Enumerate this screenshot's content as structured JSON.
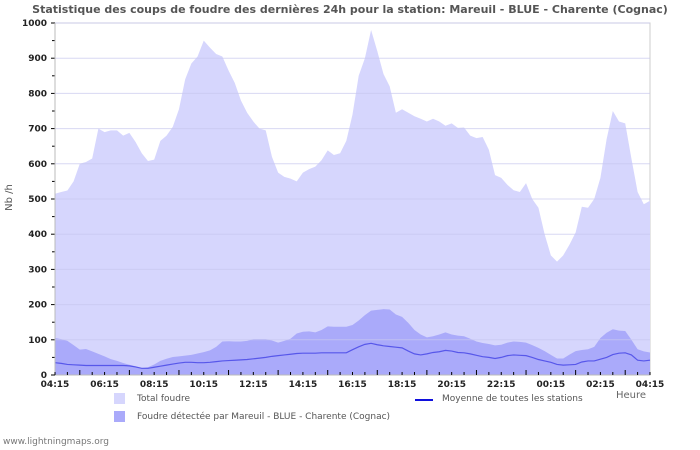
{
  "chart_data": {
    "type": "area",
    "title": "Statistique des coups de foudre des dernières 24h pour la station: Mareuil - BLUE - Charente (Cognac)",
    "xlabel": "Heure",
    "ylabel": "Nb /h",
    "ylim": [
      0,
      1000
    ],
    "yticks": [
      "0",
      "100",
      "200",
      "300",
      "400",
      "500",
      "600",
      "700",
      "800",
      "900",
      "1000"
    ],
    "xtick_labels": [
      "04:15",
      "06:15",
      "08:15",
      "10:15",
      "12:15",
      "14:15",
      "16:15",
      "18:15",
      "20:15",
      "22:15",
      "00:15",
      "02:15",
      "04:15"
    ],
    "x_step_minutes": 15,
    "grid": true,
    "series": [
      {
        "name": "Total foudre",
        "kind": "area",
        "color": "#d6d6fd",
        "values": [
          515,
          520,
          524,
          550,
          600,
          605,
          615,
          700,
          690,
          695,
          695,
          680,
          688,
          662,
          630,
          608,
          612,
          665,
          680,
          705,
          755,
          840,
          885,
          905,
          950,
          930,
          912,
          905,
          865,
          830,
          780,
          745,
          720,
          700,
          695,
          620,
          575,
          563,
          558,
          550,
          575,
          585,
          592,
          610,
          638,
          625,
          630,
          665,
          740,
          850,
          900,
          980,
          920,
          855,
          820,
          745,
          755,
          745,
          735,
          728,
          720,
          728,
          720,
          708,
          715,
          702,
          703,
          680,
          673,
          676,
          640,
          568,
          560,
          540,
          525,
          520,
          545,
          500,
          475,
          400,
          340,
          322,
          340,
          370,
          405,
          478,
          475,
          500,
          560,
          670,
          750,
          720,
          715,
          615,
          520,
          485,
          495
        ]
      },
      {
        "name": "Foudre détectée par Mareuil - BLUE - Charente (Cognac)",
        "kind": "area",
        "color": "#aaaafa",
        "values": [
          105,
          102,
          97,
          85,
          72,
          74,
          67,
          60,
          53,
          45,
          40,
          34,
          29,
          25,
          20,
          22,
          30,
          40,
          46,
          51,
          53,
          55,
          57,
          61,
          65,
          70,
          80,
          95,
          96,
          95,
          95,
          97,
          102,
          102,
          102,
          98,
          92,
          97,
          103,
          118,
          123,
          124,
          121,
          128,
          138,
          137,
          137,
          137,
          142,
          155,
          170,
          183,
          185,
          187,
          186,
          172,
          165,
          148,
          128,
          115,
          107,
          110,
          115,
          121,
          115,
          112,
          110,
          103,
          95,
          91,
          88,
          84,
          86,
          92,
          95,
          94,
          92,
          85,
          77,
          68,
          57,
          47,
          47,
          58,
          68,
          71,
          73,
          80,
          105,
          120,
          130,
          126,
          125,
          100,
          73,
          67,
          64
        ]
      },
      {
        "name": "Moyenne de toutes les stations",
        "kind": "line",
        "color": "#2020e0",
        "values": [
          35,
          33,
          30,
          29,
          28,
          27,
          27,
          27,
          27,
          27,
          27,
          27,
          26,
          23,
          19,
          19,
          22,
          25,
          28,
          31,
          34,
          36,
          36,
          35,
          35,
          36,
          38,
          40,
          41,
          42,
          43,
          44,
          46,
          48,
          50,
          53,
          55,
          57,
          59,
          61,
          62,
          62,
          62,
          63,
          63,
          63,
          63,
          63,
          72,
          80,
          87,
          90,
          86,
          83,
          81,
          79,
          77,
          68,
          60,
          57,
          60,
          64,
          66,
          70,
          68,
          64,
          63,
          60,
          56,
          52,
          50,
          47,
          50,
          55,
          57,
          56,
          55,
          50,
          44,
          40,
          36,
          30,
          28,
          29,
          30,
          37,
          40,
          40,
          45,
          50,
          58,
          62,
          63,
          57,
          42,
          40,
          42
        ]
      }
    ],
    "legend": [
      "Total foudre",
      "Foudre détectée par Mareuil - BLUE - Charente (Cognac)",
      "Moyenne de toutes les stations"
    ],
    "legend_placement": "bottom"
  },
  "watermark": "www.lightningmaps.org"
}
